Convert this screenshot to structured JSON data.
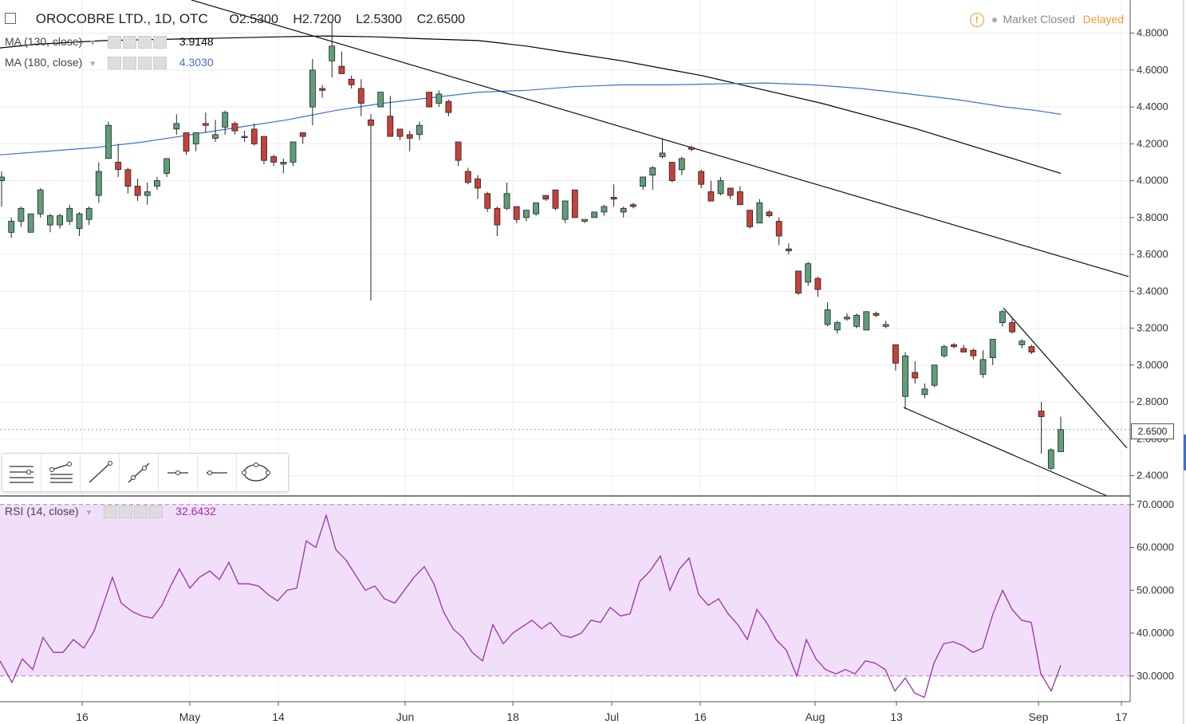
{
  "header": {
    "symbol": "OROCOBRE LTD., 1D, OTC",
    "open": "O2.5300",
    "high": "H2.7200",
    "low": "L2.5300",
    "close": "C2.6500"
  },
  "status": {
    "market": "Market Closed",
    "delay": "Delayed"
  },
  "indicators": {
    "ma130": {
      "label": "MA (130, close)",
      "value": "3.9148",
      "color": "#000000"
    },
    "ma180": {
      "label": "MA (180, close)",
      "value": "4.3030",
      "color": "#3a6fd8"
    },
    "rsi": {
      "label": "RSI (14, close)",
      "value": "32.6432",
      "color": "#9b2fae"
    }
  },
  "toolbar": {
    "tools": [
      "horizontal-lines-icon",
      "fib-icon",
      "trend-line-icon",
      "ray-icon",
      "horizontal-ray-icon",
      "horizontal-line-icon",
      "ellipse-icon"
    ]
  },
  "last_price_label": "2.6500",
  "colors": {
    "up": "#5f9e78",
    "down": "#c6413c",
    "rsi_band": "#f1dffa",
    "rsi_line": "#9b2fae",
    "ma180": "#3a6fd8",
    "ma130": "#000000"
  },
  "chart_data": {
    "type": "candlestick",
    "price_axis": {
      "ticks": [
        "4.8000",
        "4.6000",
        "4.4000",
        "4.2000",
        "4.0000",
        "3.8000",
        "3.6000",
        "3.4000",
        "3.2000",
        "3.0000",
        "2.8000",
        "2.6000",
        "2.4000"
      ],
      "ylim": [
        2.29,
        4.98
      ]
    },
    "rsi_axis": {
      "ticks": [
        "70.0000",
        "60.0000",
        "50.0000",
        "40.0000",
        "30.0000"
      ],
      "ylim": [
        24,
        72
      ],
      "band": [
        30,
        70
      ]
    },
    "x_labels": [
      "16",
      "May",
      "14",
      "Jun",
      "18",
      "Jul",
      "16",
      "Aug",
      "13",
      "Sep",
      "17"
    ],
    "candles": [
      [
        4.05,
        3.86,
        4.0,
        4.02
      ],
      [
        3.8,
        3.69,
        3.72,
        3.78
      ],
      [
        3.86,
        3.75,
        3.78,
        3.85
      ],
      [
        3.82,
        3.72,
        3.72,
        3.82
      ],
      [
        3.96,
        3.8,
        3.82,
        3.95
      ],
      [
        3.82,
        3.72,
        3.76,
        3.81
      ],
      [
        3.82,
        3.74,
        3.76,
        3.81
      ],
      [
        3.87,
        3.76,
        3.78,
        3.85
      ],
      [
        3.83,
        3.7,
        3.74,
        3.82
      ],
      [
        3.86,
        3.76,
        3.79,
        3.85
      ],
      [
        4.1,
        3.88,
        3.92,
        4.05
      ],
      [
        4.32,
        4.12,
        4.12,
        4.3
      ],
      [
        4.2,
        4.02,
        4.1,
        4.06
      ],
      [
        4.07,
        3.93,
        4.06,
        3.97
      ],
      [
        4.01,
        3.89,
        3.97,
        3.92
      ],
      [
        3.99,
        3.87,
        3.92,
        3.94
      ],
      [
        4.02,
        3.95,
        3.97,
        4.0
      ],
      [
        4.12,
        4.02,
        4.04,
        4.12
      ],
      [
        4.36,
        4.25,
        4.28,
        4.31
      ],
      [
        4.26,
        4.14,
        4.26,
        4.16
      ],
      [
        4.26,
        4.16,
        4.2,
        4.26
      ],
      [
        4.37,
        4.26,
        4.31,
        4.3
      ],
      [
        4.33,
        4.21,
        4.23,
        4.25
      ],
      [
        4.38,
        4.25,
        4.29,
        4.37
      ],
      [
        4.32,
        4.25,
        4.31,
        4.27
      ],
      [
        4.27,
        4.21,
        4.24,
        4.24
      ],
      [
        4.31,
        4.19,
        4.28,
        4.2
      ],
      [
        4.24,
        4.09,
        4.24,
        4.11
      ],
      [
        4.14,
        4.08,
        4.13,
        4.1
      ],
      [
        4.12,
        4.04,
        4.09,
        4.1
      ],
      [
        4.21,
        4.08,
        4.1,
        4.21
      ],
      [
        4.26,
        4.2,
        4.26,
        4.24
      ],
      [
        4.66,
        4.3,
        4.4,
        4.6
      ],
      [
        4.52,
        4.45,
        4.5,
        4.49
      ],
      [
        4.86,
        4.56,
        4.65,
        4.73
      ],
      [
        4.7,
        4.58,
        4.62,
        4.58
      ],
      [
        4.57,
        4.5,
        4.55,
        4.52
      ],
      [
        4.55,
        4.35,
        4.5,
        4.42
      ],
      [
        4.36,
        3.35,
        4.33,
        4.3
      ],
      [
        4.48,
        4.4,
        4.4,
        4.48
      ],
      [
        4.46,
        4.3,
        4.35,
        4.24
      ],
      [
        4.28,
        4.22,
        4.28,
        4.24
      ],
      [
        4.27,
        4.16,
        4.25,
        4.23
      ],
      [
        4.32,
        4.22,
        4.25,
        4.3
      ],
      [
        4.48,
        4.4,
        4.48,
        4.4
      ],
      [
        4.49,
        4.4,
        4.42,
        4.47
      ],
      [
        4.44,
        4.35,
        4.43,
        4.37
      ],
      [
        4.21,
        4.08,
        4.21,
        4.11
      ],
      [
        4.07,
        3.98,
        4.05,
        3.99
      ],
      [
        4.03,
        3.9,
        4.01,
        3.96
      ],
      [
        3.94,
        3.83,
        3.93,
        3.85
      ],
      [
        3.86,
        3.7,
        3.85,
        3.76
      ],
      [
        3.99,
        3.84,
        3.85,
        3.93
      ],
      [
        3.86,
        3.77,
        3.86,
        3.79
      ],
      [
        3.84,
        3.78,
        3.8,
        3.84
      ],
      [
        3.87,
        3.81,
        3.82,
        3.88
      ],
      [
        3.92,
        3.89,
        3.92,
        3.9
      ],
      [
        3.95,
        3.84,
        3.95,
        3.85
      ],
      [
        3.84,
        3.77,
        3.79,
        3.89
      ],
      [
        3.95,
        3.8,
        3.95,
        3.8
      ],
      [
        3.79,
        3.77,
        3.78,
        3.79
      ],
      [
        3.83,
        3.8,
        3.8,
        3.83
      ],
      [
        3.87,
        3.81,
        3.83,
        3.86
      ],
      [
        3.98,
        3.86,
        3.91,
        3.9
      ],
      [
        3.86,
        3.8,
        3.83,
        3.85
      ],
      [
        3.88,
        3.85,
        3.87,
        3.86
      ],
      [
        4.02,
        3.95,
        3.97,
        4.02
      ],
      [
        4.08,
        3.95,
        4.03,
        4.07
      ],
      [
        4.23,
        4.12,
        4.13,
        4.15
      ],
      [
        4.1,
        3.99,
        4.1,
        4.0
      ],
      [
        4.13,
        4.03,
        4.06,
        4.12
      ],
      [
        4.19,
        4.16,
        4.18,
        4.17
      ],
      [
        4.06,
        3.96,
        4.05,
        3.98
      ],
      [
        4.0,
        3.89,
        3.94,
        3.89
      ],
      [
        4.02,
        3.92,
        3.93,
        4.0
      ],
      [
        3.96,
        3.9,
        3.96,
        3.92
      ],
      [
        3.97,
        3.87,
        3.94,
        3.87
      ],
      [
        3.84,
        3.74,
        3.84,
        3.75
      ],
      [
        3.9,
        3.77,
        3.77,
        3.88
      ],
      [
        3.84,
        3.8,
        3.83,
        3.81
      ],
      [
        3.8,
        3.65,
        3.78,
        3.7
      ],
      [
        3.66,
        3.6,
        3.63,
        3.62
      ],
      [
        3.51,
        3.38,
        3.51,
        3.39
      ],
      [
        3.56,
        3.43,
        3.45,
        3.55
      ],
      [
        3.48,
        3.37,
        3.47,
        3.41
      ],
      [
        3.34,
        3.21,
        3.22,
        3.3
      ],
      [
        3.24,
        3.17,
        3.19,
        3.23
      ],
      [
        3.28,
        3.24,
        3.25,
        3.26
      ],
      [
        3.28,
        3.2,
        3.21,
        3.27
      ],
      [
        3.29,
        3.19,
        3.19,
        3.29
      ],
      [
        3.29,
        3.26,
        3.28,
        3.27
      ],
      [
        3.24,
        3.2,
        3.21,
        3.22
      ],
      [
        3.11,
        2.97,
        3.11,
        3.01
      ],
      [
        3.07,
        2.76,
        2.83,
        3.05
      ],
      [
        3.02,
        2.9,
        2.96,
        2.93
      ],
      [
        2.9,
        2.82,
        2.84,
        2.87
      ],
      [
        3.0,
        2.88,
        2.89,
        3.0
      ],
      [
        3.11,
        3.04,
        3.05,
        3.1
      ],
      [
        3.12,
        3.09,
        3.11,
        3.1
      ],
      [
        3.11,
        3.07,
        3.09,
        3.07
      ],
      [
        3.09,
        3.03,
        3.08,
        3.05
      ],
      [
        3.08,
        2.93,
        2.95,
        3.03
      ],
      [
        3.14,
        3.0,
        3.04,
        3.14
      ],
      [
        3.3,
        3.21,
        3.23,
        3.29
      ],
      [
        3.25,
        3.17,
        3.23,
        3.18
      ],
      [
        3.14,
        3.09,
        3.11,
        3.13
      ],
      [
        3.11,
        3.06,
        3.1,
        3.07
      ],
      [
        2.8,
        2.52,
        2.75,
        2.72
      ],
      [
        2.55,
        2.43,
        2.44,
        2.54
      ],
      [
        2.72,
        2.53,
        2.53,
        2.65
      ]
    ],
    "ma130": [
      [
        0,
        4.72
      ],
      [
        45,
        4.74
      ],
      [
        130,
        4.76
      ],
      [
        240,
        4.77
      ],
      [
        350,
        4.78
      ],
      [
        410,
        4.785
      ],
      [
        470,
        4.78
      ],
      [
        530,
        4.77
      ],
      [
        600,
        4.76
      ],
      [
        660,
        4.73
      ],
      [
        720,
        4.69
      ],
      [
        780,
        4.65
      ],
      [
        830,
        4.61
      ],
      [
        880,
        4.57
      ],
      [
        930,
        4.52
      ],
      [
        980,
        4.47
      ],
      [
        1030,
        4.42
      ],
      [
        1090,
        4.35
      ],
      [
        1150,
        4.28
      ],
      [
        1210,
        4.2
      ],
      [
        1270,
        4.12
      ],
      [
        1330,
        4.04
      ]
    ],
    "ma180": [
      [
        0,
        4.14
      ],
      [
        60,
        4.16
      ],
      [
        120,
        4.18
      ],
      [
        180,
        4.21
      ],
      [
        240,
        4.25
      ],
      [
        300,
        4.29
      ],
      [
        360,
        4.33
      ],
      [
        420,
        4.38
      ],
      [
        480,
        4.42
      ],
      [
        540,
        4.45
      ],
      [
        600,
        4.48
      ],
      [
        660,
        4.49
      ],
      [
        720,
        4.51
      ],
      [
        780,
        4.52
      ],
      [
        840,
        4.52
      ],
      [
        900,
        4.525
      ],
      [
        960,
        4.53
      ],
      [
        1020,
        4.52
      ],
      [
        1080,
        4.5
      ],
      [
        1140,
        4.47
      ],
      [
        1200,
        4.44
      ],
      [
        1260,
        4.4
      ],
      [
        1300,
        4.38
      ],
      [
        1330,
        4.36
      ]
    ],
    "trendlines": [
      [
        [
          240,
          4.98
        ],
        [
          1415,
          3.48
        ]
      ],
      [
        [
          1133,
          2.77
        ],
        [
          1388,
          2.29
        ]
      ],
      [
        [
          1258,
          3.31
        ],
        [
          1413,
          2.55
        ]
      ]
    ],
    "rsi": [
      [
        0,
        33.5
      ],
      [
        15,
        28.5
      ],
      [
        28,
        34.0
      ],
      [
        41,
        31.5
      ],
      [
        54,
        39.0
      ],
      [
        67,
        35.5
      ],
      [
        79,
        35.5
      ],
      [
        92,
        38.5
      ],
      [
        105,
        36.5
      ],
      [
        118,
        40.5
      ],
      [
        130,
        47.0
      ],
      [
        141,
        53.0
      ],
      [
        152,
        47.0
      ],
      [
        166,
        45.0
      ],
      [
        178,
        44.0
      ],
      [
        191,
        43.5
      ],
      [
        203,
        46.5
      ],
      [
        214,
        51.0
      ],
      [
        225,
        55.0
      ],
      [
        238,
        50.5
      ],
      [
        250,
        53.0
      ],
      [
        263,
        54.5
      ],
      [
        275,
        52.5
      ],
      [
        287,
        56.5
      ],
      [
        299,
        51.5
      ],
      [
        312,
        51.5
      ],
      [
        324,
        51.0
      ],
      [
        336,
        49.0
      ],
      [
        348,
        47.5
      ],
      [
        360,
        50.0
      ],
      [
        372,
        50.5
      ],
      [
        384,
        61.5
      ],
      [
        396,
        60.0
      ],
      [
        409,
        67.5
      ],
      [
        421,
        59.5
      ],
      [
        434,
        57.0
      ],
      [
        446,
        53.5
      ],
      [
        458,
        50.0
      ],
      [
        470,
        51.0
      ],
      [
        482,
        48.0
      ],
      [
        495,
        47.0
      ],
      [
        507,
        50.0
      ],
      [
        519,
        53.0
      ],
      [
        532,
        55.5
      ],
      [
        544,
        51.5
      ],
      [
        556,
        45.0
      ],
      [
        568,
        41.0
      ],
      [
        580,
        39.0
      ],
      [
        592,
        35.5
      ],
      [
        605,
        33.5
      ],
      [
        618,
        42.0
      ],
      [
        631,
        37.5
      ],
      [
        643,
        40.0
      ],
      [
        655,
        41.5
      ],
      [
        667,
        43.0
      ],
      [
        679,
        41.0
      ],
      [
        690,
        42.5
      ],
      [
        704,
        39.5
      ],
      [
        716,
        39.0
      ],
      [
        729,
        40.0
      ],
      [
        741,
        43.0
      ],
      [
        753,
        42.5
      ],
      [
        765,
        46.0
      ],
      [
        778,
        44.0
      ],
      [
        790,
        44.5
      ],
      [
        802,
        52.0
      ],
      [
        815,
        54.5
      ],
      [
        828,
        58.0
      ],
      [
        840,
        50.0
      ],
      [
        852,
        55.0
      ],
      [
        864,
        57.5
      ],
      [
        876,
        49.0
      ],
      [
        888,
        46.5
      ],
      [
        901,
        48.0
      ],
      [
        913,
        44.5
      ],
      [
        925,
        42.0
      ],
      [
        937,
        38.5
      ],
      [
        949,
        45.5
      ],
      [
        961,
        42.5
      ],
      [
        973,
        38.5
      ],
      [
        986,
        36.0
      ],
      [
        999,
        30.0
      ],
      [
        1011,
        38.5
      ],
      [
        1023,
        34.0
      ],
      [
        1035,
        31.5
      ],
      [
        1048,
        30.5
      ],
      [
        1060,
        31.5
      ],
      [
        1072,
        30.5
      ],
      [
        1085,
        33.5
      ],
      [
        1097,
        33.0
      ],
      [
        1110,
        31.5
      ],
      [
        1122,
        26.5
      ],
      [
        1135,
        29.5
      ],
      [
        1147,
        26.0
      ],
      [
        1159,
        25.0
      ],
      [
        1171,
        33.0
      ],
      [
        1183,
        37.5
      ],
      [
        1195,
        38.0
      ],
      [
        1208,
        37.0
      ],
      [
        1220,
        35.5
      ],
      [
        1232,
        36.5
      ],
      [
        1245,
        44.5
      ],
      [
        1257,
        50.0
      ],
      [
        1269,
        45.5
      ],
      [
        1281,
        43.0
      ],
      [
        1293,
        42.5
      ],
      [
        1305,
        30.5
      ],
      [
        1318,
        26.5
      ],
      [
        1330,
        32.5
      ]
    ]
  }
}
